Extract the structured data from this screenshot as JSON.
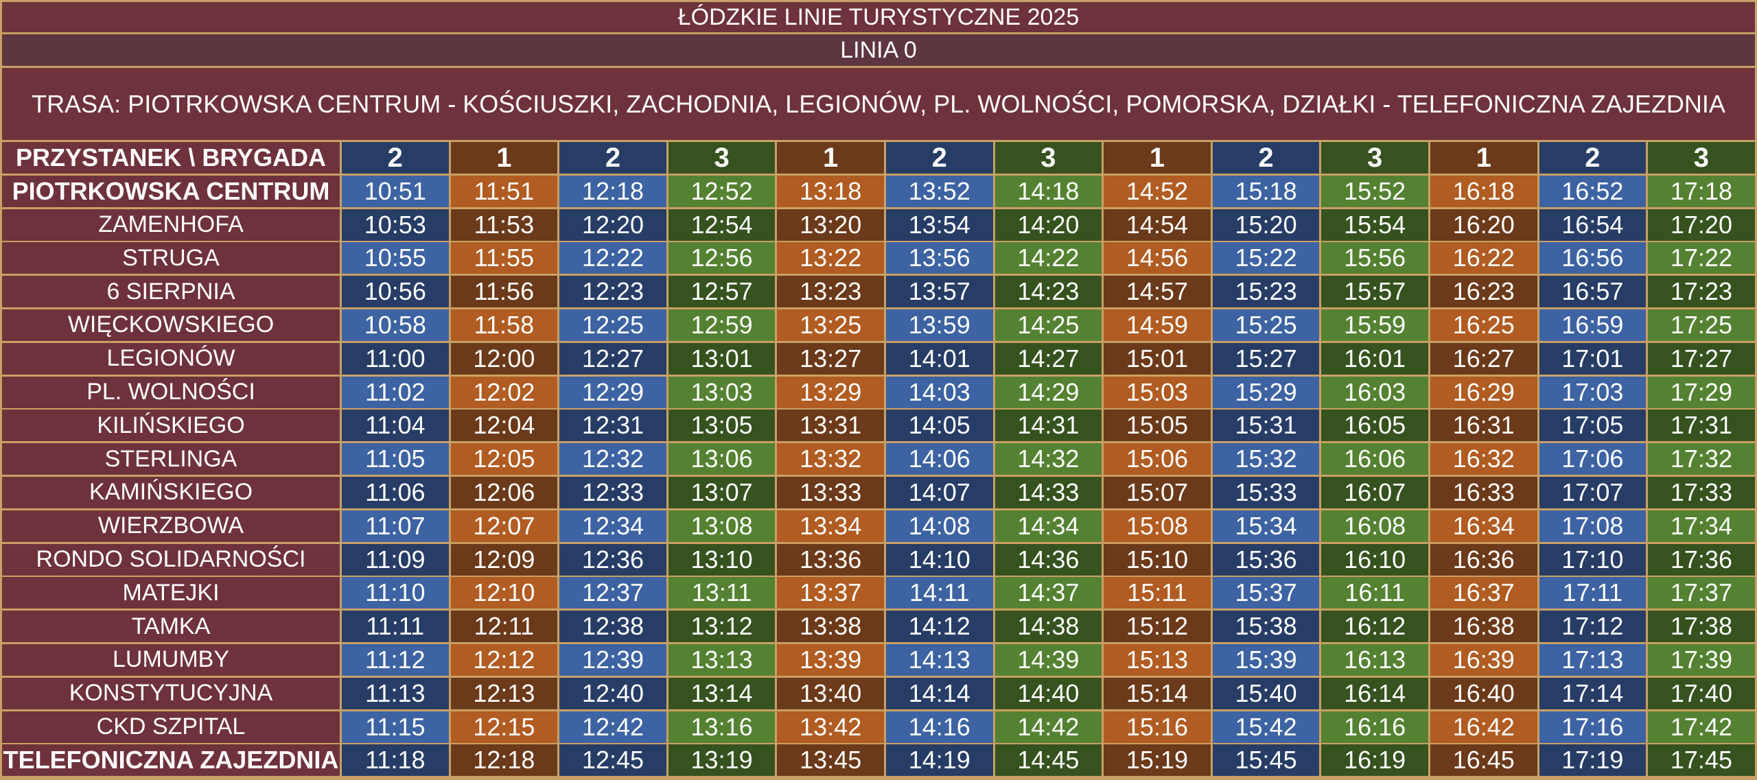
{
  "header": {
    "title": "łódzkie linie turystyczne 2025",
    "line": "Linia 0",
    "route": "TRASA: Piotrkowska Centrum - Kościuszki, Zachodnia, Legionów, pl. Wolności, Pomorska, Działki - Telefoniczna Zajezdnia"
  },
  "colors": {
    "border": "#c9a064",
    "stop_bg": "#6e323c",
    "header_bg_top": "#6e323c",
    "header_bg_mid": "#5e3640",
    "brigade_1": {
      "light": "#b15c22",
      "dark": "#6b3a1a"
    },
    "brigade_2": {
      "light": "#3d63a3",
      "dark": "#273d66"
    },
    "brigade_3": {
      "light": "#558232",
      "dark": "#36521f"
    }
  },
  "table": {
    "corner_label": "Przystanek \\ Brygada",
    "brigades": [
      "2",
      "1",
      "2",
      "3",
      "1",
      "2",
      "3",
      "1",
      "2",
      "3",
      "1",
      "2",
      "3"
    ],
    "rows": [
      {
        "stop": "Piotrkowska Centrum",
        "bold": true,
        "times": [
          "10:51",
          "11:51",
          "12:18",
          "12:52",
          "13:18",
          "13:52",
          "14:18",
          "14:52",
          "15:18",
          "15:52",
          "16:18",
          "16:52",
          "17:18"
        ]
      },
      {
        "stop": "Zamenhofa",
        "bold": false,
        "times": [
          "10:53",
          "11:53",
          "12:20",
          "12:54",
          "13:20",
          "13:54",
          "14:20",
          "14:54",
          "15:20",
          "15:54",
          "16:20",
          "16:54",
          "17:20"
        ]
      },
      {
        "stop": "Struga",
        "bold": false,
        "times": [
          "10:55",
          "11:55",
          "12:22",
          "12:56",
          "13:22",
          "13:56",
          "14:22",
          "14:56",
          "15:22",
          "15:56",
          "16:22",
          "16:56",
          "17:22"
        ]
      },
      {
        "stop": "6 Sierpnia",
        "bold": false,
        "times": [
          "10:56",
          "11:56",
          "12:23",
          "12:57",
          "13:23",
          "13:57",
          "14:23",
          "14:57",
          "15:23",
          "15:57",
          "16:23",
          "16:57",
          "17:23"
        ]
      },
      {
        "stop": "Więckowskiego",
        "bold": false,
        "times": [
          "10:58",
          "11:58",
          "12:25",
          "12:59",
          "13:25",
          "13:59",
          "14:25",
          "14:59",
          "15:25",
          "15:59",
          "16:25",
          "16:59",
          "17:25"
        ]
      },
      {
        "stop": "Legionów",
        "bold": false,
        "times": [
          "11:00",
          "12:00",
          "12:27",
          "13:01",
          "13:27",
          "14:01",
          "14:27",
          "15:01",
          "15:27",
          "16:01",
          "16:27",
          "17:01",
          "17:27"
        ]
      },
      {
        "stop": "pl. Wolności",
        "bold": false,
        "times": [
          "11:02",
          "12:02",
          "12:29",
          "13:03",
          "13:29",
          "14:03",
          "14:29",
          "15:03",
          "15:29",
          "16:03",
          "16:29",
          "17:03",
          "17:29"
        ]
      },
      {
        "stop": "Kilińskiego",
        "bold": false,
        "times": [
          "11:04",
          "12:04",
          "12:31",
          "13:05",
          "13:31",
          "14:05",
          "14:31",
          "15:05",
          "15:31",
          "16:05",
          "16:31",
          "17:05",
          "17:31"
        ]
      },
      {
        "stop": "Sterlinga",
        "bold": false,
        "times": [
          "11:05",
          "12:05",
          "12:32",
          "13:06",
          "13:32",
          "14:06",
          "14:32",
          "15:06",
          "15:32",
          "16:06",
          "16:32",
          "17:06",
          "17:32"
        ]
      },
      {
        "stop": "Kamińskiego",
        "bold": false,
        "times": [
          "11:06",
          "12:06",
          "12:33",
          "13:07",
          "13:33",
          "14:07",
          "14:33",
          "15:07",
          "15:33",
          "16:07",
          "16:33",
          "17:07",
          "17:33"
        ]
      },
      {
        "stop": "Wierzbowa",
        "bold": false,
        "times": [
          "11:07",
          "12:07",
          "12:34",
          "13:08",
          "13:34",
          "14:08",
          "14:34",
          "15:08",
          "15:34",
          "16:08",
          "16:34",
          "17:08",
          "17:34"
        ]
      },
      {
        "stop": "Rondo Solidarności",
        "bold": false,
        "times": [
          "11:09",
          "12:09",
          "12:36",
          "13:10",
          "13:36",
          "14:10",
          "14:36",
          "15:10",
          "15:36",
          "16:10",
          "16:36",
          "17:10",
          "17:36"
        ]
      },
      {
        "stop": "Matejki",
        "bold": false,
        "times": [
          "11:10",
          "12:10",
          "12:37",
          "13:11",
          "13:37",
          "14:11",
          "14:37",
          "15:11",
          "15:37",
          "16:11",
          "16:37",
          "17:11",
          "17:37"
        ]
      },
      {
        "stop": "Tamka",
        "bold": false,
        "times": [
          "11:11",
          "12:11",
          "12:38",
          "13:12",
          "13:38",
          "14:12",
          "14:38",
          "15:12",
          "15:38",
          "16:12",
          "16:38",
          "17:12",
          "17:38"
        ]
      },
      {
        "stop": "Lumumby",
        "bold": false,
        "times": [
          "11:12",
          "12:12",
          "12:39",
          "13:13",
          "13:39",
          "14:13",
          "14:39",
          "15:13",
          "15:39",
          "16:13",
          "16:39",
          "17:13",
          "17:39"
        ]
      },
      {
        "stop": "Konstytucyjna",
        "bold": false,
        "times": [
          "11:13",
          "12:13",
          "12:40",
          "13:14",
          "13:40",
          "14:14",
          "14:40",
          "15:14",
          "15:40",
          "16:14",
          "16:40",
          "17:14",
          "17:40"
        ]
      },
      {
        "stop": "CKD Szpital",
        "bold": false,
        "times": [
          "11:15",
          "12:15",
          "12:42",
          "13:16",
          "13:42",
          "14:16",
          "14:42",
          "15:16",
          "15:42",
          "16:16",
          "16:42",
          "17:16",
          "17:42"
        ]
      },
      {
        "stop": "Telefoniczna Zajezdnia",
        "bold": true,
        "times": [
          "11:18",
          "12:18",
          "12:45",
          "13:19",
          "13:45",
          "14:19",
          "14:45",
          "15:19",
          "15:45",
          "16:19",
          "16:45",
          "17:19",
          "17:45"
        ]
      }
    ]
  }
}
